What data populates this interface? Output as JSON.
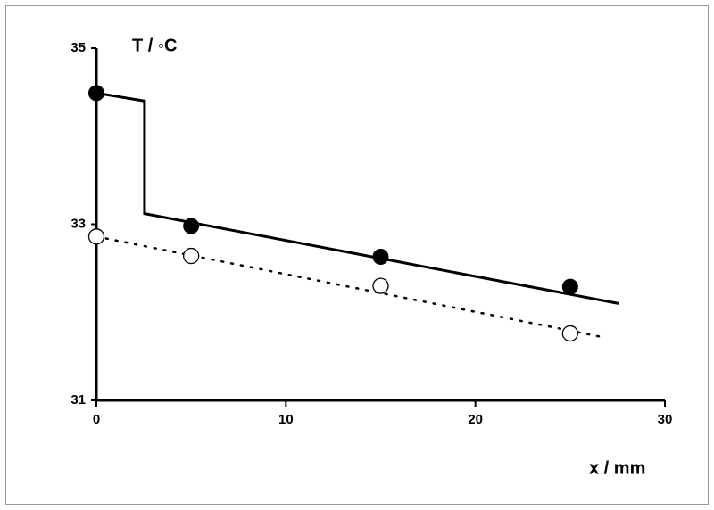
{
  "chart_data": {
    "type": "line",
    "y_label": "T  /  ◦C",
    "x_label": "x  /  mm",
    "xlim": [
      0,
      30
    ],
    "xticks": [
      0,
      10,
      20,
      30
    ],
    "ylim": [
      31,
      35
    ],
    "yticks": [
      31,
      33,
      35
    ],
    "grid": false,
    "series": [
      {
        "type": "scatter",
        "marker": "filled",
        "color": "#000000",
        "x": [
          0,
          5,
          15,
          25
        ],
        "values": [
          34.49,
          32.98,
          32.63,
          32.29
        ]
      },
      {
        "type": "scatter",
        "marker": "open",
        "color": "#000000",
        "x": [
          0,
          5,
          15,
          25
        ],
        "values": [
          32.86,
          32.64,
          32.3,
          31.76
        ]
      },
      {
        "type": "line",
        "style": "solid",
        "color": "#000000",
        "x": [
          0,
          2.54,
          2.54,
          27.55
        ],
        "values": [
          34.49,
          34.4,
          33.12,
          32.1
        ]
      },
      {
        "type": "line",
        "style": "dotted",
        "color": "#000000",
        "x": [
          0,
          26.9
        ],
        "values": [
          32.86,
          31.71
        ]
      }
    ]
  }
}
